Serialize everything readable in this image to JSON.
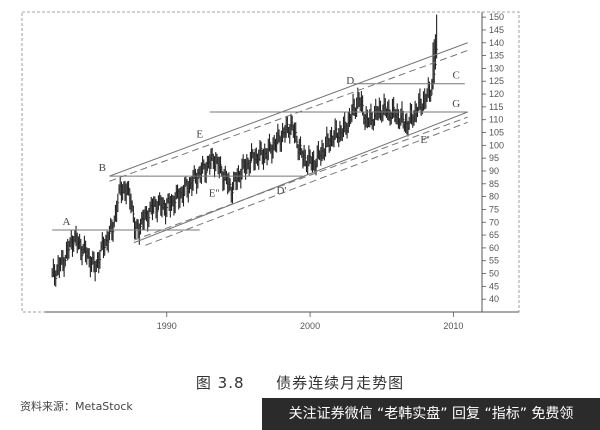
{
  "caption": {
    "figure_no": "图 3.8",
    "title": "债券连续月走势图"
  },
  "source": "资料来源：MetaStock",
  "banner": "关注证券微信 “老韩实盘” 回复 “指标” 免费领",
  "chart_data": {
    "type": "bar",
    "style": "OHLC monthly bars with trendlines",
    "xlim": [
      1981.5,
      2012
    ],
    "ylim": [
      35,
      152
    ],
    "x_ticks": [
      1990,
      2000,
      2010
    ],
    "y_ticks": [
      40,
      45,
      50,
      55,
      60,
      65,
      70,
      75,
      80,
      85,
      90,
      95,
      100,
      105,
      110,
      115,
      120,
      125,
      130,
      135,
      140,
      145,
      150
    ],
    "y_axis_side": "right",
    "grid": false,
    "anchors": [
      [
        1982.0,
        49
      ],
      [
        1982.8,
        55
      ],
      [
        1983.5,
        64
      ],
      [
        1984.5,
        57
      ],
      [
        1985.0,
        52
      ],
      [
        1985.5,
        60
      ],
      [
        1986.2,
        67
      ],
      [
        1986.8,
        84
      ],
      [
        1987.5,
        80
      ],
      [
        1987.8,
        66
      ],
      [
        1988.5,
        72
      ],
      [
        1989.2,
        77
      ],
      [
        1990.0,
        76
      ],
      [
        1990.8,
        80
      ],
      [
        1991.5,
        84
      ],
      [
        1992.3,
        89
      ],
      [
        1993.3,
        95
      ],
      [
        1994.5,
        83
      ],
      [
        1995.2,
        90
      ],
      [
        1996.0,
        95
      ],
      [
        1997.0,
        97
      ],
      [
        1998.7,
        108
      ],
      [
        1999.5,
        95
      ],
      [
        2000.3,
        93
      ],
      [
        2001.5,
        103
      ],
      [
        2002.4,
        106
      ],
      [
        2003.4,
        118
      ],
      [
        2004.0,
        109
      ],
      [
        2005.0,
        114
      ],
      [
        2006.0,
        112
      ],
      [
        2006.8,
        108
      ],
      [
        2007.6,
        115
      ],
      [
        2008.2,
        119
      ],
      [
        2008.6,
        125
      ],
      [
        2008.85,
        136
      ]
    ],
    "trendlines": [
      {
        "style": "solid",
        "from": [
          1982.0,
          67
        ],
        "to": [
          1992.3,
          67
        ]
      },
      {
        "style": "solid",
        "from": [
          1986.0,
          88
        ],
        "to": [
          1999.5,
          88
        ]
      },
      {
        "style": "solid",
        "from": [
          1986.0,
          88
        ],
        "to": [
          2011.0,
          140
        ]
      },
      {
        "style": "dashed",
        "from": [
          1986.0,
          86
        ],
        "to": [
          2011.0,
          137
        ]
      },
      {
        "style": "solid",
        "from": [
          1987.7,
          62
        ],
        "to": [
          2011.0,
          113
        ]
      },
      {
        "style": "dashed",
        "from": [
          1987.7,
          63
        ],
        "to": [
          2011.0,
          111
        ]
      },
      {
        "style": "dashed",
        "from": [
          1988.5,
          61
        ],
        "to": [
          2011.0,
          109
        ]
      },
      {
        "style": "solid",
        "from": [
          1993.0,
          113
        ],
        "to": [
          2011.0,
          113
        ]
      },
      {
        "style": "solid",
        "from": [
          2003.0,
          124
        ],
        "to": [
          2010.8,
          124
        ]
      }
    ],
    "annotations": [
      {
        "text": "A",
        "x": 1983.0,
        "y": 69
      },
      {
        "text": "B",
        "x": 1985.5,
        "y": 90
      },
      {
        "text": "E",
        "x": 1992.3,
        "y": 103
      },
      {
        "text": "E''",
        "x": 1993.3,
        "y": 80
      },
      {
        "text": "D'",
        "x": 1998.0,
        "y": 81
      },
      {
        "text": "D",
        "x": 2002.8,
        "y": 124
      },
      {
        "text": "C",
        "x": 2010.2,
        "y": 126
      },
      {
        "text": "G",
        "x": 2010.2,
        "y": 115
      },
      {
        "text": "E'",
        "x": 2008.0,
        "y": 101
      }
    ]
  }
}
